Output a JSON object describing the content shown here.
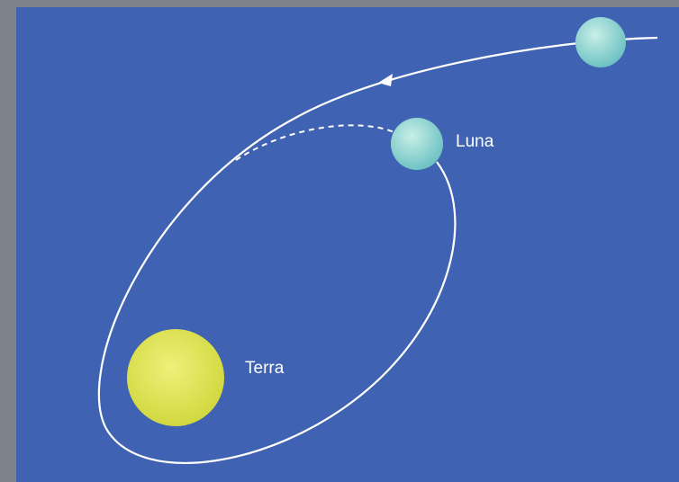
{
  "nodes": [
    {
      "label": "Luna"
    },
    {
      "label": "Terra"
    }
  ]
}
